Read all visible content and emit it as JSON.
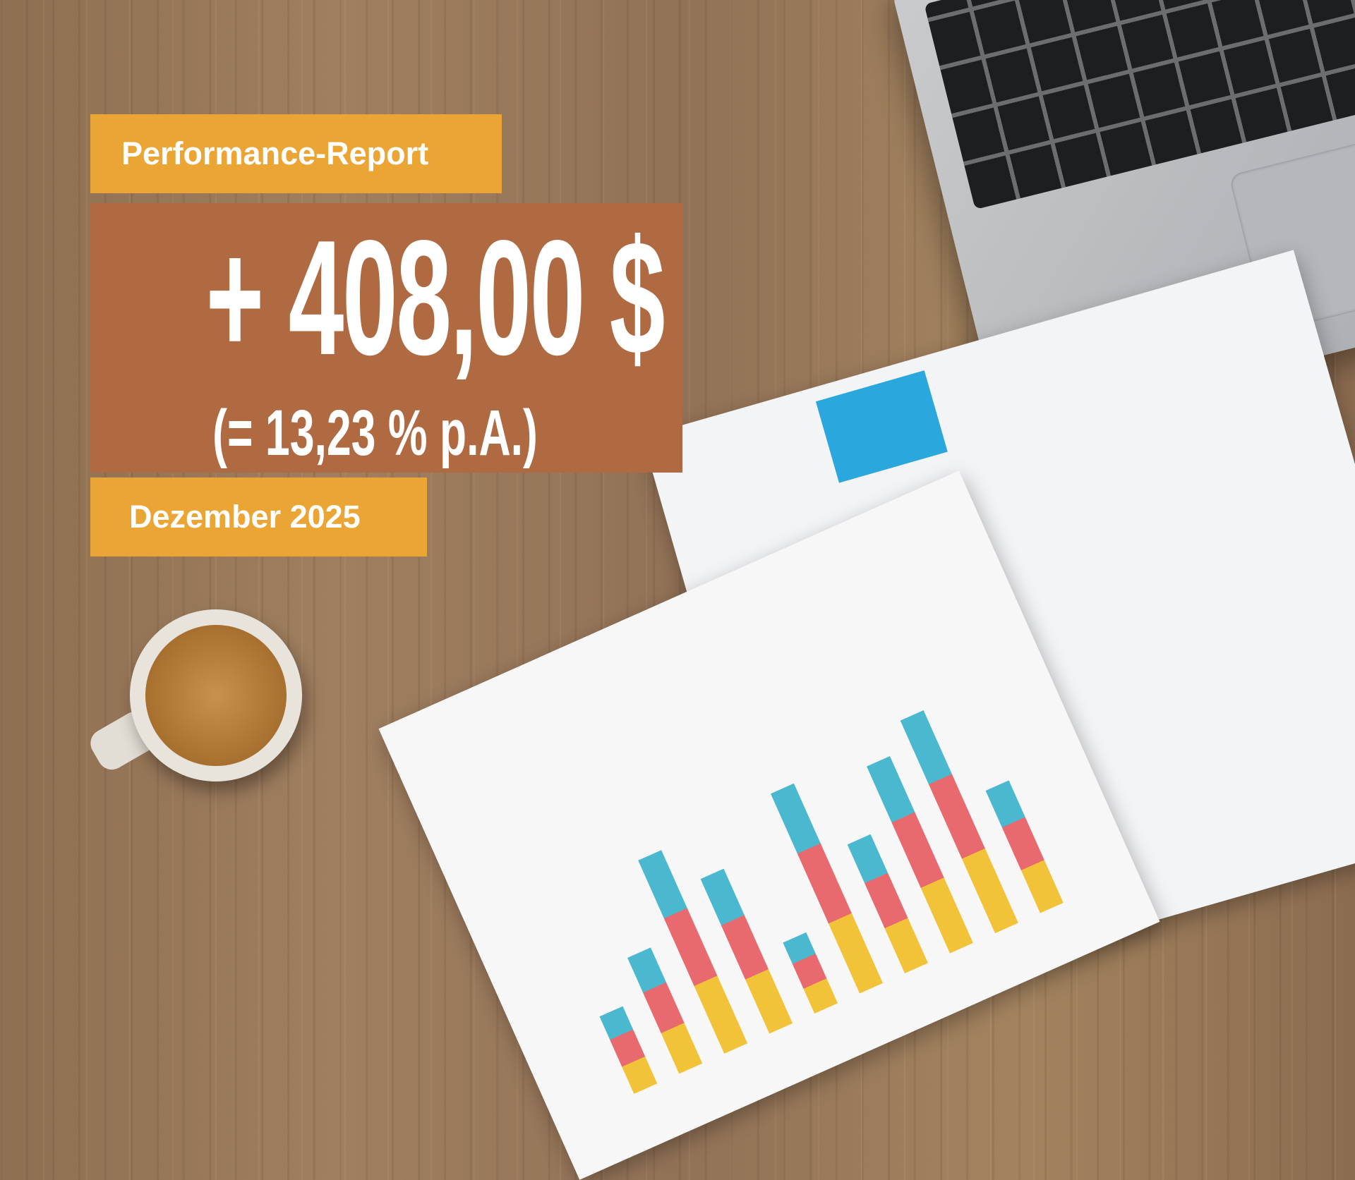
{
  "header": {
    "label": "Performance-Report"
  },
  "performance": {
    "amount": "+ 408,00 $",
    "rate": "(= 13,23 % p.A.)"
  },
  "footer": {
    "period": "Dezember 2025"
  },
  "colors": {
    "label_bg": "#eba535",
    "main_bg": "#b06a42",
    "text": "#ffffff"
  }
}
